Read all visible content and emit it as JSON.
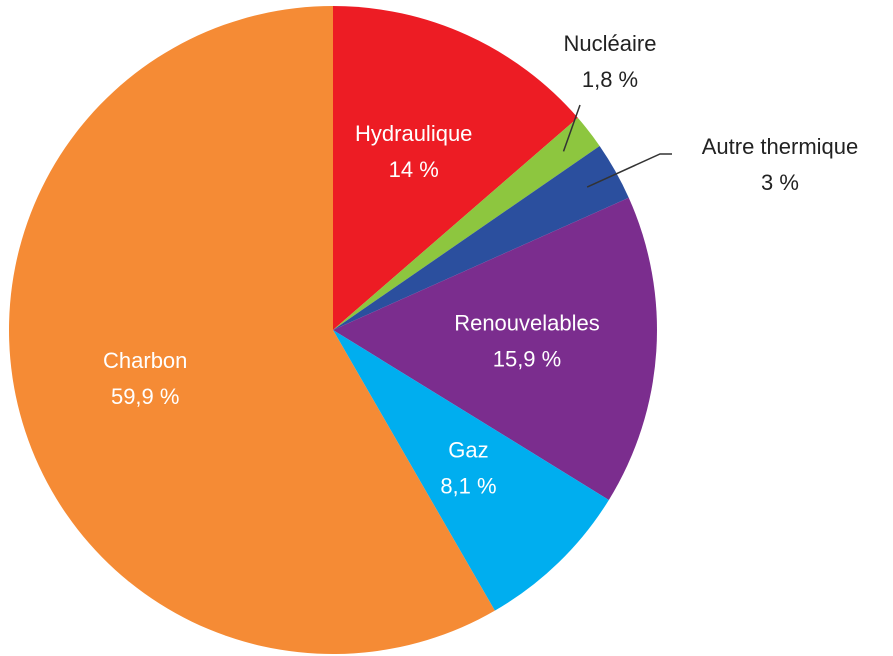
{
  "chart_data": {
    "type": "pie",
    "categories": [
      "Hydraulique",
      "Nucléaire",
      "Autre thermique",
      "Renouvelables",
      "Gaz",
      "Charbon"
    ],
    "values": [
      14,
      1.8,
      3,
      15.9,
      8.1,
      59.9
    ],
    "value_labels": [
      "14 %",
      "1,8 %",
      "3 %",
      "15,9 %",
      "8,1 %",
      "59,9 %"
    ],
    "colors": [
      "#ed1c24",
      "#8dc63f",
      "#2b4f9e",
      "#7b2d8e",
      "#00aeef",
      "#f58b35"
    ]
  }
}
